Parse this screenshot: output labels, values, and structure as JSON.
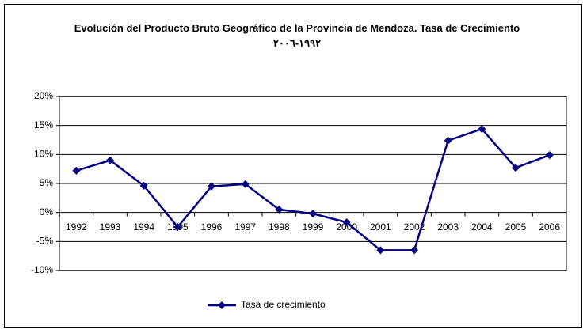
{
  "chart_data": {
    "type": "line",
    "title": "Evolución del Producto Bruto Geográfico de la Provincia de Mendoza. Tasa de Crecimiento ١٩٩٢-٢٠٠٦",
    "categories": [
      "1992",
      "1993",
      "1994",
      "1995",
      "1996",
      "1997",
      "1998",
      "1999",
      "2000",
      "2001",
      "2002",
      "2003",
      "2004",
      "2005",
      "2006"
    ],
    "series": [
      {
        "name": "Tasa de crecimiento",
        "color": "#000080",
        "values": [
          7.2,
          9.0,
          4.6,
          -2.5,
          4.5,
          4.9,
          0.5,
          -0.2,
          -1.7,
          -6.5,
          -6.5,
          12.4,
          14.4,
          7.7,
          9.9
        ]
      }
    ],
    "ylim": [
      -10,
      20
    ],
    "yticks": [
      {
        "value": -10,
        "label": "-10%"
      },
      {
        "value": -5,
        "label": "-5%"
      },
      {
        "value": 0,
        "label": "0%"
      },
      {
        "value": 5,
        "label": "5%"
      },
      {
        "value": 10,
        "label": "10%"
      },
      {
        "value": 15,
        "label": "15%"
      },
      {
        "value": 20,
        "label": "20%"
      }
    ],
    "grid": true,
    "legend": "bottom"
  }
}
